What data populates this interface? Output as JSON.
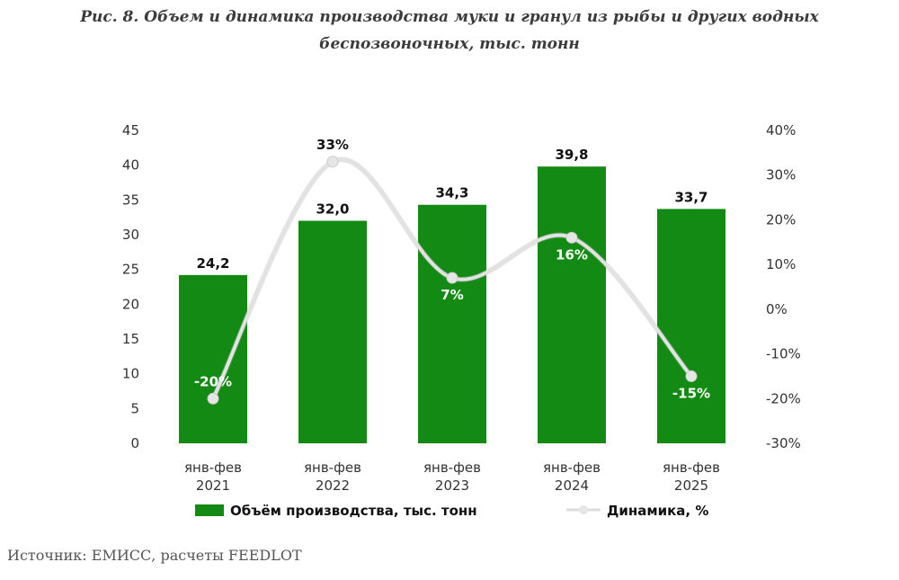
{
  "title": "Рис. 8. Объем и динамика производства муки и гранул из рыбы и других водных беспозвоночных, тыс. тонн",
  "source": "Источник: ЕМИСС, расчеты FEEDLOT",
  "chart_data": {
    "type": "bar",
    "categories": [
      [
        "янв-фев",
        "2021"
      ],
      [
        "янв-фев",
        "2022"
      ],
      [
        "янв-фев",
        "2023"
      ],
      [
        "янв-фев",
        "2024"
      ],
      [
        "янв-фев",
        "2025"
      ]
    ],
    "series": [
      {
        "name": "Объём производства, тыс. тонн",
        "type": "bar",
        "axis": "left",
        "values": [
          24.2,
          32.0,
          34.3,
          39.8,
          33.7
        ],
        "labels": [
          "24,2",
          "32,0",
          "34,3",
          "39,8",
          "33,7"
        ],
        "color": "#138a13"
      },
      {
        "name": "Динамика, %",
        "type": "line",
        "axis": "right",
        "values": [
          -20,
          33,
          7,
          16,
          -15
        ],
        "labels": [
          "-20%",
          "33%",
          "7%",
          "16%",
          "-15%"
        ],
        "color": "#e2e2e2"
      }
    ],
    "left_axis": {
      "ylim": [
        0,
        45
      ],
      "ticks": [
        "0",
        "5",
        "10",
        "15",
        "20",
        "25",
        "30",
        "35",
        "40",
        "45"
      ]
    },
    "right_axis": {
      "ylim": [
        -30,
        40
      ],
      "ticks": [
        "-30%",
        "-20%",
        "-10%",
        "0%",
        "10%",
        "20%",
        "30%",
        "40%"
      ]
    },
    "legend": "bottom",
    "grid": false
  }
}
